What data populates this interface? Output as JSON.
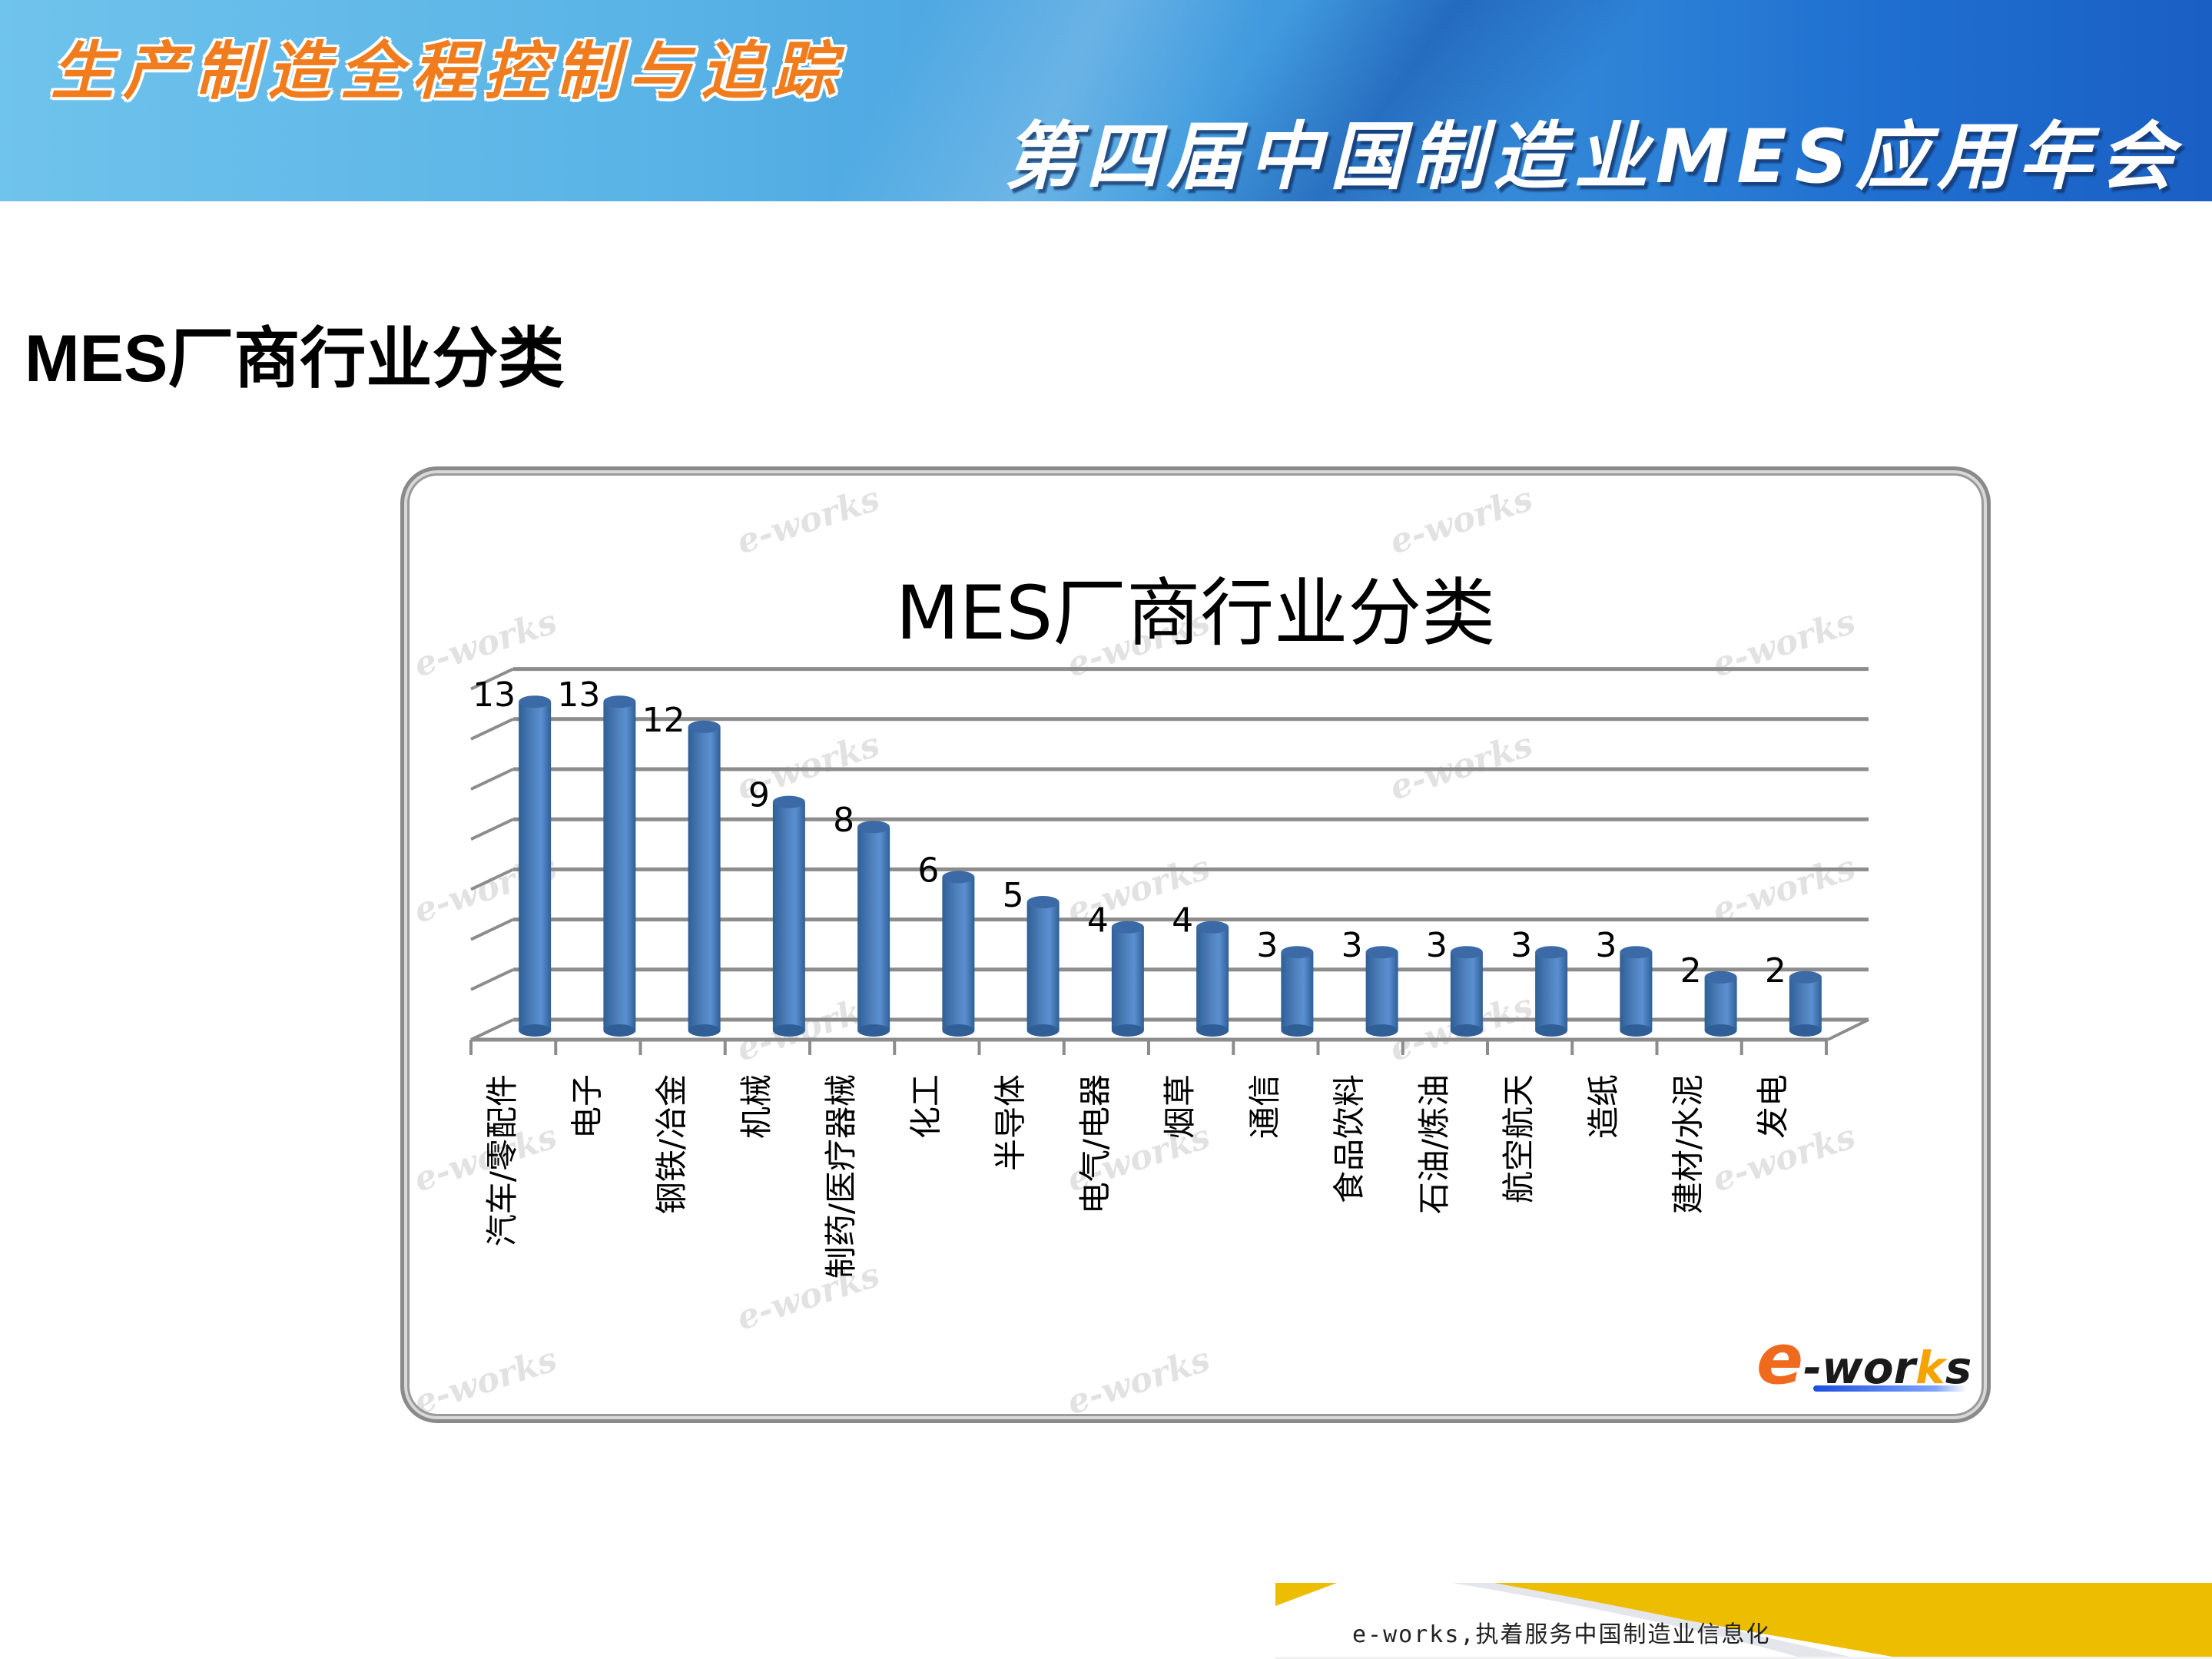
{
  "header": {
    "banner_line1": "生产制造全程控制与追踪",
    "banner_line2": "第四届中国制造业MES应用年会"
  },
  "slide": {
    "title": "MES厂商行业分类"
  },
  "chart": {
    "watermark": "e-works",
    "logo": {
      "e": "e",
      "wor": "-wor",
      "k": "k",
      "s": "s"
    }
  },
  "footer": {
    "slogan": "e-works,执着服务中国制造业信息化"
  },
  "colors": {
    "bar": "#4f81bd",
    "bar_dark": "#2f5f96",
    "grid": "#8c8c8c",
    "banner_blue": "#3f98dd",
    "banner_orange": "#f07c1e",
    "footer_yellow": "#ecbd00"
  },
  "chart_data": {
    "type": "bar",
    "title": "MES厂商行业分类",
    "categories": [
      "汽车/零配件",
      "电子",
      "钢铁/冶金",
      "机械",
      "制药/医疗器械",
      "化工",
      "半导体",
      "电气/电器",
      "烟草",
      "通信",
      "食品饮料",
      "石油/炼油",
      "航空航天",
      "造纸",
      "建材/水泥",
      "发电"
    ],
    "values": [
      13,
      13,
      12,
      9,
      8,
      6,
      5,
      4,
      4,
      3,
      3,
      3,
      3,
      3,
      2,
      2
    ],
    "xlabel": "",
    "ylabel": "",
    "ylim": [
      0,
      14
    ],
    "ytick_step": 2,
    "y_axis_labels_visible": false,
    "data_labels": true,
    "grid": true,
    "style": "3d-cylinder",
    "legend": "none"
  }
}
